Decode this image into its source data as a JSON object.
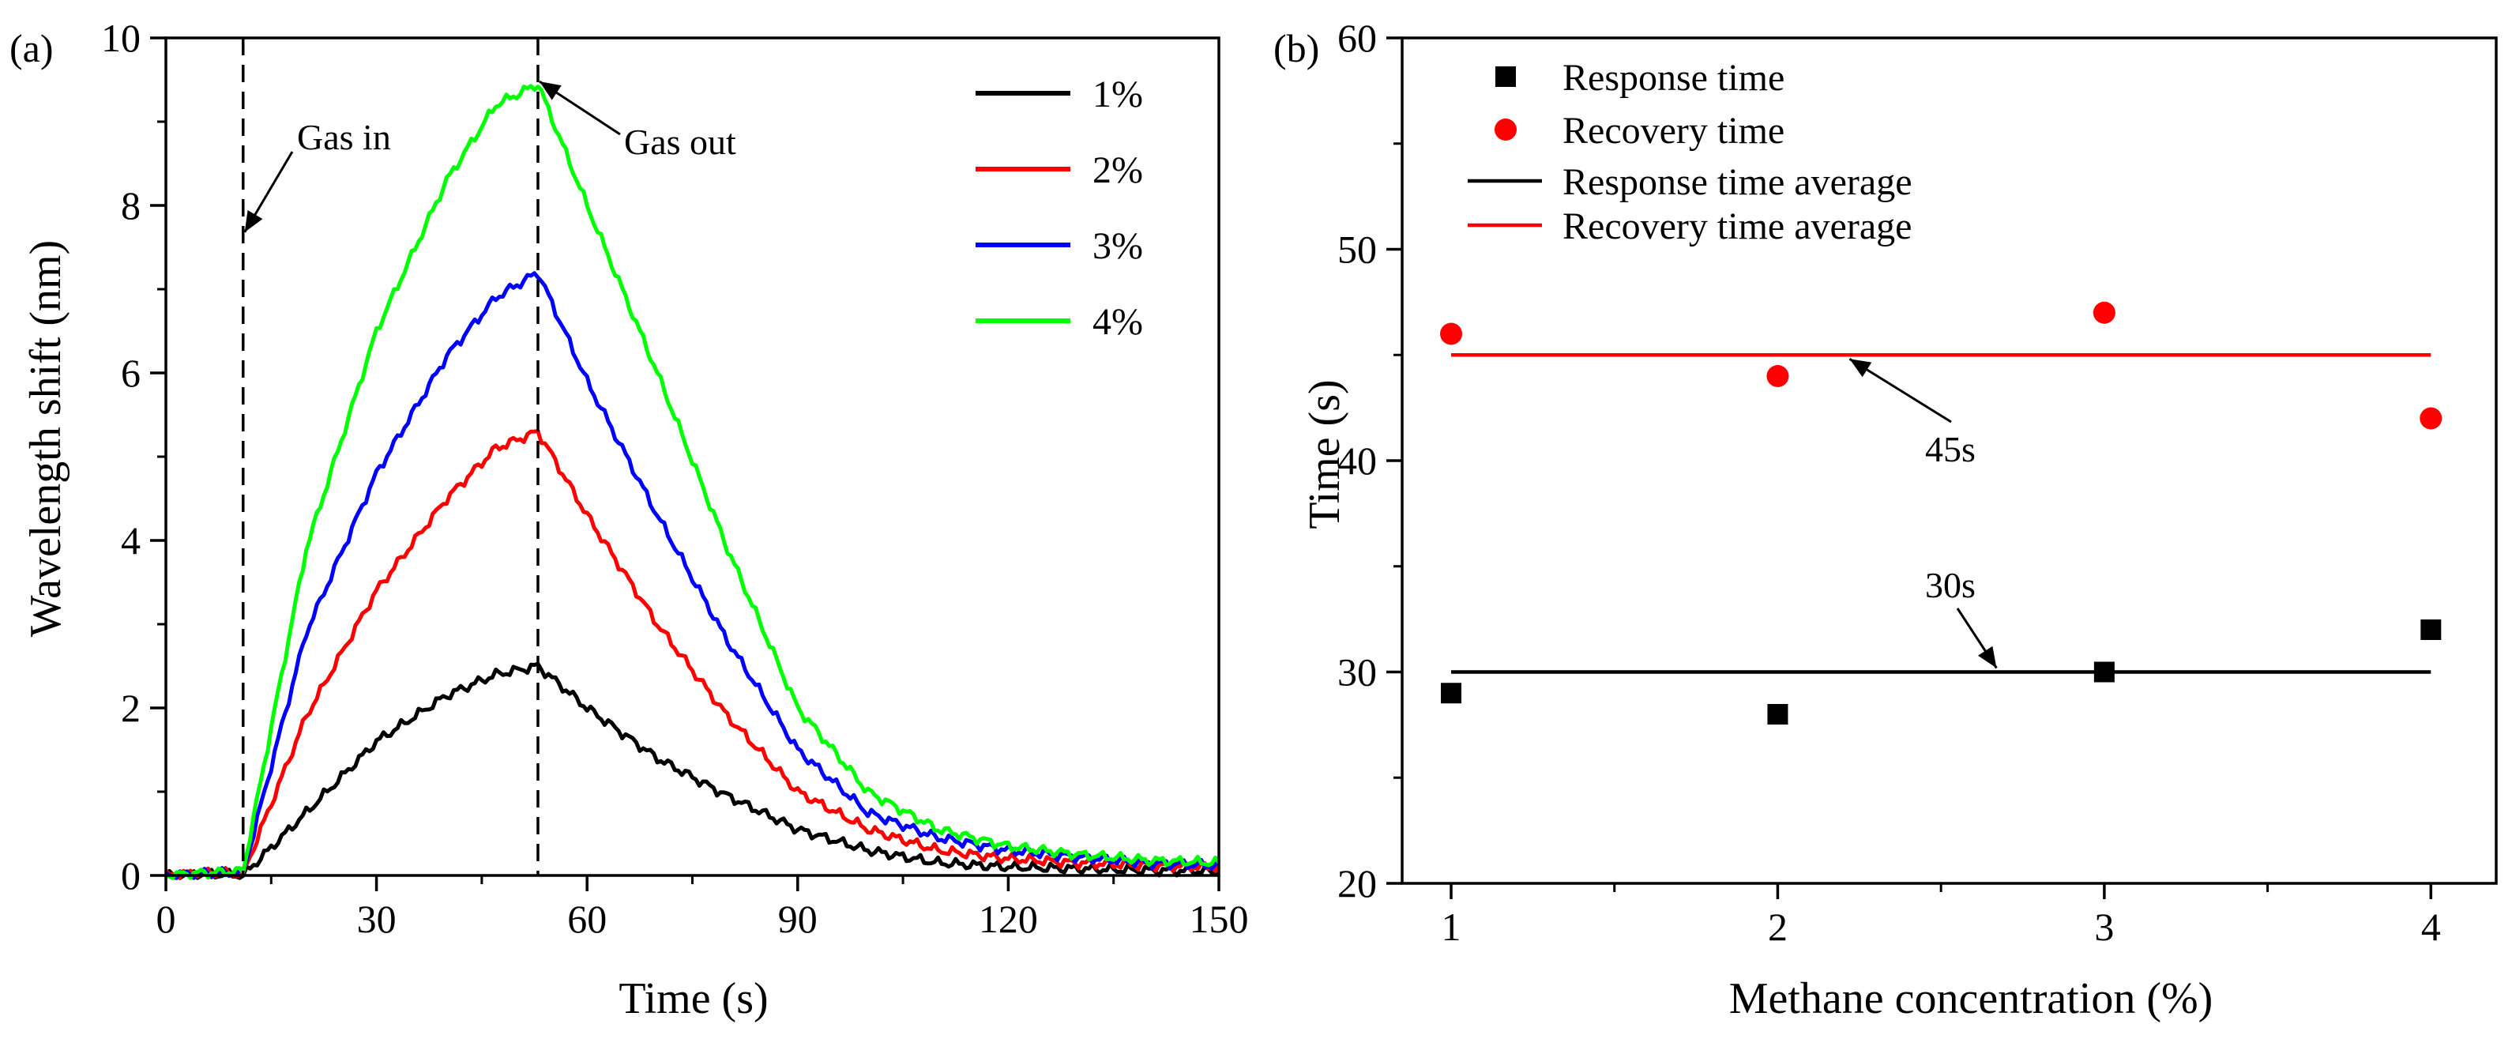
{
  "chart_data": [
    {
      "panel_label": "(a)",
      "type": "line",
      "xlabel": "Time (s)",
      "ylabel": "Wavelength shift (nm)",
      "xlim": [
        0,
        150
      ],
      "ylim": [
        0,
        10
      ],
      "xticks": [
        0,
        30,
        60,
        90,
        120,
        150
      ],
      "yticks": [
        0,
        2,
        4,
        6,
        8,
        10
      ],
      "grid": false,
      "legend_position": "top-right",
      "gas_in_time": 11,
      "gas_out_time": 53,
      "annotations": [
        {
          "text": "Gas in",
          "x": 11,
          "y": 7.7
        },
        {
          "text": "Gas out",
          "x": 53,
          "y": 9.45
        }
      ],
      "series": [
        {
          "name": "1%",
          "color": "#000000",
          "peak": 2.5,
          "points": [
            [
              0,
              0
            ],
            [
              5,
              0.02
            ],
            [
              11,
              0.0
            ],
            [
              20,
              0.75
            ],
            [
              30,
              1.6
            ],
            [
              40,
              2.15
            ],
            [
              47,
              2.4
            ],
            [
              53,
              2.5
            ],
            [
              60,
              2.0
            ],
            [
              70,
              1.4
            ],
            [
              80,
              0.95
            ],
            [
              90,
              0.55
            ],
            [
              100,
              0.3
            ],
            [
              110,
              0.15
            ],
            [
              120,
              0.1
            ],
            [
              130,
              0.08
            ],
            [
              140,
              0.06
            ],
            [
              150,
              0.05
            ]
          ]
        },
        {
          "name": "2%",
          "color": "#ff0000",
          "peak": 5.3,
          "points": [
            [
              0,
              0
            ],
            [
              5,
              0.03
            ],
            [
              11,
              0.02
            ],
            [
              20,
              1.9
            ],
            [
              30,
              3.4
            ],
            [
              40,
              4.5
            ],
            [
              47,
              5.1
            ],
            [
              53,
              5.3
            ],
            [
              60,
              4.3
            ],
            [
              70,
              3.0
            ],
            [
              80,
              1.9
            ],
            [
              90,
              1.0
            ],
            [
              100,
              0.55
            ],
            [
              110,
              0.3
            ],
            [
              120,
              0.2
            ],
            [
              130,
              0.15
            ],
            [
              140,
              0.12
            ],
            [
              150,
              0.1
            ]
          ]
        },
        {
          "name": "3%",
          "color": "#0000ff",
          "peak": 7.2,
          "points": [
            [
              0,
              0
            ],
            [
              5,
              0.03
            ],
            [
              11,
              0.03
            ],
            [
              20,
              2.9
            ],
            [
              30,
              4.8
            ],
            [
              40,
              6.2
            ],
            [
              47,
              6.9
            ],
            [
              53,
              7.2
            ],
            [
              60,
              5.9
            ],
            [
              70,
              4.3
            ],
            [
              80,
              2.8
            ],
            [
              90,
              1.5
            ],
            [
              100,
              0.75
            ],
            [
              110,
              0.45
            ],
            [
              120,
              0.3
            ],
            [
              130,
              0.22
            ],
            [
              140,
              0.15
            ],
            [
              150,
              0.12
            ]
          ]
        },
        {
          "name": "4%",
          "color": "#00ff00",
          "peak": 9.45,
          "points": [
            [
              0,
              0
            ],
            [
              5,
              0.03
            ],
            [
              11,
              0.05
            ],
            [
              20,
              3.9
            ],
            [
              30,
              6.5
            ],
            [
              40,
              8.3
            ],
            [
              47,
              9.2
            ],
            [
              53,
              9.45
            ],
            [
              60,
              8.0
            ],
            [
              70,
              6.0
            ],
            [
              80,
              3.9
            ],
            [
              90,
              2.0
            ],
            [
              100,
              1.0
            ],
            [
              110,
              0.55
            ],
            [
              120,
              0.35
            ],
            [
              130,
              0.25
            ],
            [
              140,
              0.18
            ],
            [
              150,
              0.15
            ]
          ]
        }
      ]
    },
    {
      "panel_label": "(b)",
      "type": "scatter",
      "xlabel": "Methane concentration (%)",
      "ylabel": "Time (s)",
      "xlim": [
        0.85,
        4.2
      ],
      "ylim": [
        20,
        60
      ],
      "xticks": [
        1,
        2,
        3,
        4
      ],
      "yticks": [
        20,
        30,
        40,
        50,
        60
      ],
      "grid": false,
      "legend_position": "top-left",
      "series": [
        {
          "name": "Response time",
          "marker": "square",
          "color": "#000000",
          "x": [
            1,
            2,
            3,
            4
          ],
          "y": [
            29,
            28,
            30,
            32
          ]
        },
        {
          "name": "Recovery time",
          "marker": "circle",
          "color": "#ff0000",
          "x": [
            1,
            2,
            3,
            4
          ],
          "y": [
            46,
            44,
            47,
            42
          ]
        }
      ],
      "averages": [
        {
          "name": "Response time average",
          "color": "#000000",
          "value": 30,
          "label": "30s",
          "x_range": [
            1,
            4
          ]
        },
        {
          "name": "Recovery time average",
          "color": "#ff0000",
          "value": 45,
          "label": "45s",
          "x_range": [
            1,
            4
          ]
        }
      ]
    }
  ]
}
